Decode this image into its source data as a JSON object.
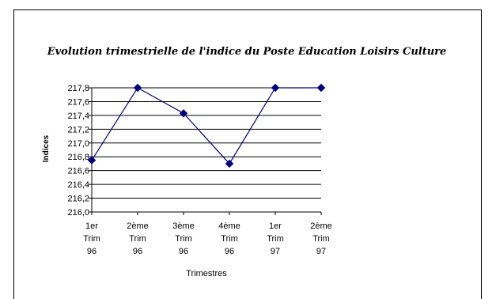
{
  "chart_data": {
    "type": "line",
    "title": "Evolution trimestrielle de l'indice du Poste Education Loisirs Culture",
    "xlabel": "Trimestres",
    "ylabel": "Indices",
    "categories": [
      [
        "1er",
        "Trim",
        "96"
      ],
      [
        "2ème",
        "Trim",
        "96"
      ],
      [
        "3ème",
        "Trim",
        "96"
      ],
      [
        "4ème",
        "Trim",
        "96"
      ],
      [
        "1er",
        "Trim",
        "97"
      ],
      [
        "2ème",
        "Trim",
        "97"
      ]
    ],
    "values": [
      216.75,
      217.8,
      217.43,
      216.7,
      217.8,
      217.8
    ],
    "ylim": [
      216.0,
      217.8
    ],
    "yticks": [
      "216,0",
      "216,2",
      "216,4",
      "216,6",
      "216,8",
      "217,0",
      "217,2",
      "217,4",
      "217,6",
      "217,8"
    ],
    "grid": true,
    "line_color": "#000080",
    "marker_color": "#000080"
  }
}
